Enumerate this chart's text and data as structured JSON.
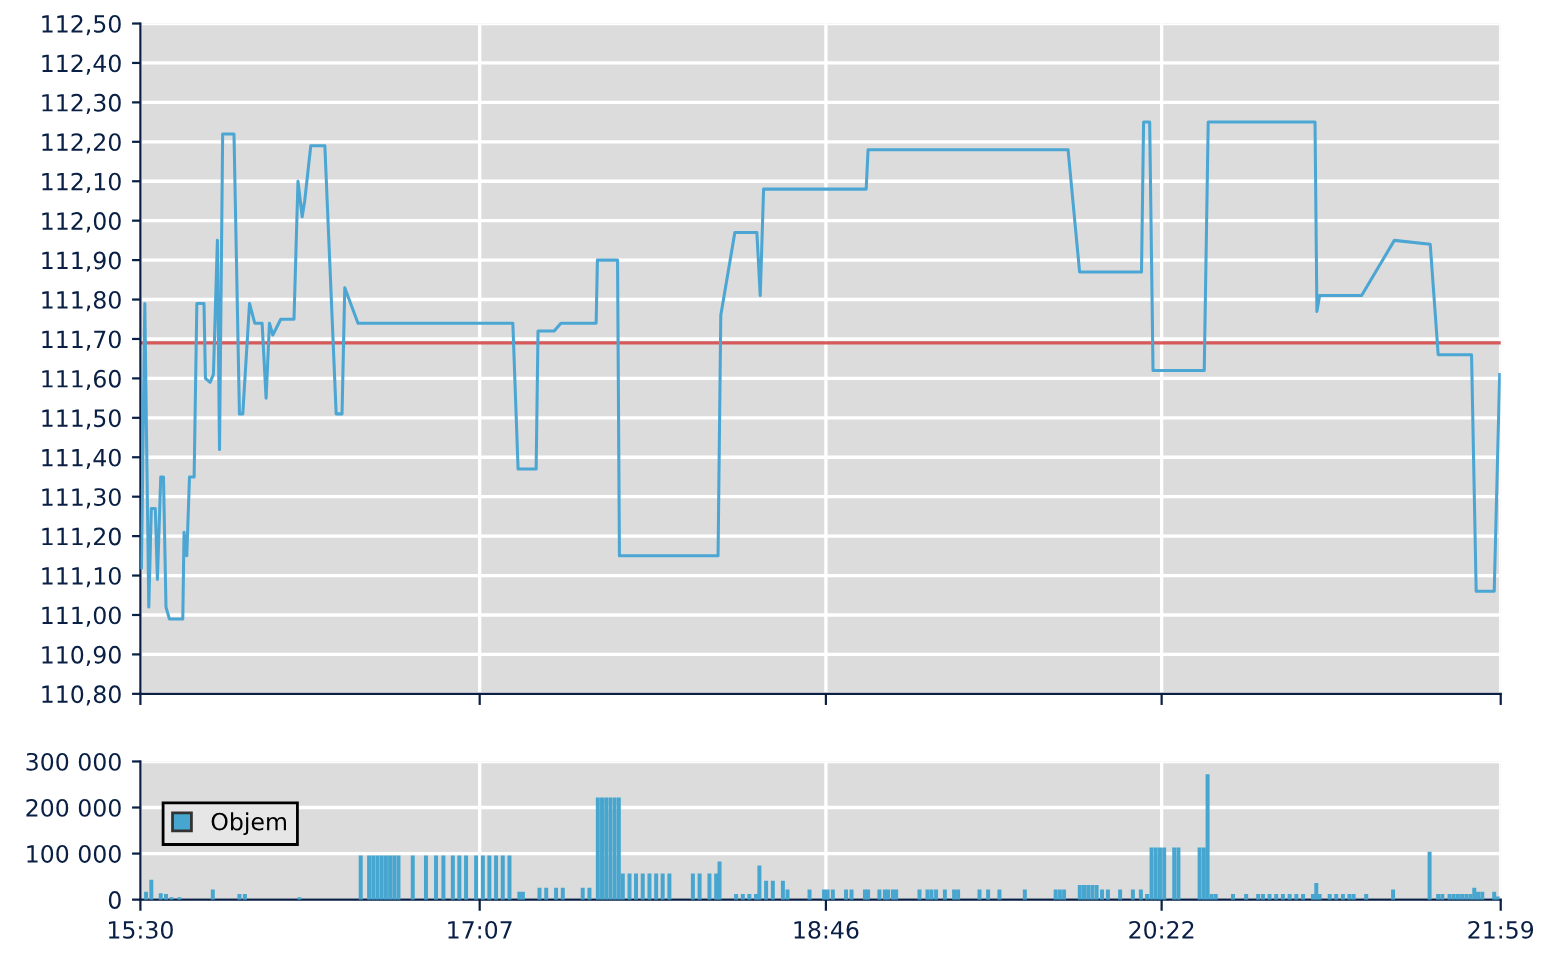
{
  "chart_data": [
    {
      "type": "line",
      "xlim": [
        15.5,
        21.983
      ],
      "xticks": [
        {
          "value": 15.5,
          "label": null
        },
        {
          "value": 17.117,
          "label": null
        },
        {
          "value": 18.767,
          "label": null
        },
        {
          "value": 20.367,
          "label": null
        },
        {
          "value": 21.983,
          "label": null
        }
      ],
      "tick_labels": "y",
      "ylim": [
        110.8,
        112.5
      ],
      "yticks": [
        {
          "value": 110.8,
          "label": "110,80"
        },
        {
          "value": 110.9,
          "label": "110,90"
        },
        {
          "value": 111.0,
          "label": "111,00"
        },
        {
          "value": 111.1,
          "label": "111,10"
        },
        {
          "value": 111.2,
          "label": "111,20"
        },
        {
          "value": 111.3,
          "label": "111,30"
        },
        {
          "value": 111.4,
          "label": "111,40"
        },
        {
          "value": 111.5,
          "label": "111,50"
        },
        {
          "value": 111.6,
          "label": "111,60"
        },
        {
          "value": 111.7,
          "label": "111,70"
        },
        {
          "value": 111.8,
          "label": "111,80"
        },
        {
          "value": 111.9,
          "label": "111,90"
        },
        {
          "value": 112.0,
          "label": "112,00"
        },
        {
          "value": 112.1,
          "label": "112,10"
        },
        {
          "value": 112.2,
          "label": "112,20"
        },
        {
          "value": 112.3,
          "label": "112,30"
        },
        {
          "value": 112.4,
          "label": "112,40"
        },
        {
          "value": 112.5,
          "label": "112,50"
        }
      ],
      "grid": true,
      "marker": "none",
      "line_style": "solid",
      "ref_lines": [
        {
          "axis": "y",
          "value": 111.69,
          "color": "#d65a5a"
        }
      ],
      "series": [
        {
          "color": "#4ba6d3",
          "x": [
            15.505,
            15.521,
            15.54,
            15.552,
            15.571,
            15.581,
            15.597,
            15.61,
            15.622,
            15.638,
            15.702,
            15.708,
            15.721,
            15.734,
            15.756,
            15.769,
            15.803,
            15.81,
            15.832,
            15.848,
            15.867,
            15.877,
            15.892,
            15.946,
            15.972,
            15.988,
            16.02,
            16.045,
            16.08,
            16.099,
            16.115,
            16.131,
            16.169,
            16.232,
            16.251,
            16.271,
            16.283,
            16.312,
            16.379,
            16.433,
            16.461,
            16.474,
            16.537,
            17.275,
            17.3,
            17.386,
            17.395,
            17.472,
            17.504,
            17.672,
            17.678,
            17.774,
            17.783,
            18.253,
            18.266,
            18.333,
            18.438,
            18.454,
            18.47,
            18.959,
            18.968,
            19.921,
            19.976,
            20.271,
            20.281,
            20.31,
            20.326,
            20.57,
            20.589,
            21.098,
            21.107,
            21.12,
            21.32,
            21.476,
            21.647,
            21.685,
            21.844,
            21.866,
            21.952,
            21.978
          ],
          "values": [
            111.12,
            111.79,
            111.02,
            111.27,
            111.27,
            111.09,
            111.35,
            111.35,
            111.02,
            110.99,
            110.99,
            111.21,
            111.15,
            111.35,
            111.35,
            111.79,
            111.79,
            111.6,
            111.59,
            111.61,
            111.95,
            111.42,
            112.22,
            112.22,
            111.51,
            111.51,
            111.79,
            111.74,
            111.74,
            111.55,
            111.74,
            111.71,
            111.75,
            111.75,
            112.1,
            112.01,
            112.05,
            112.19,
            112.19,
            111.51,
            111.51,
            111.83,
            111.74,
            111.74,
            111.37,
            111.37,
            111.72,
            111.72,
            111.74,
            111.74,
            111.9,
            111.9,
            111.15,
            111.15,
            111.76,
            111.97,
            111.97,
            111.81,
            112.08,
            112.08,
            112.18,
            112.18,
            111.87,
            111.87,
            112.25,
            112.25,
            111.62,
            111.62,
            112.25,
            112.25,
            111.77,
            111.81,
            111.81,
            111.95,
            111.94,
            111.66,
            111.66,
            111.06,
            111.06,
            111.61
          ]
        }
      ]
    },
    {
      "type": "bar",
      "xlim": [
        15.5,
        21.983
      ],
      "xticks": [
        {
          "value": 15.5,
          "label": "15:30"
        },
        {
          "value": 17.117,
          "label": "17:07"
        },
        {
          "value": 18.767,
          "label": "18:46"
        },
        {
          "value": 20.367,
          "label": "20:22"
        },
        {
          "value": 21.983,
          "label": "21:59"
        }
      ],
      "ylim": [
        0,
        300000
      ],
      "yticks": [
        0,
        {
          "value": 100000,
          "label": "100 000"
        },
        {
          "value": 200000,
          "label": "200 000"
        },
        {
          "value": 300000,
          "label": "300 000"
        }
      ],
      "grid": true,
      "legend": "left",
      "series": [
        {
          "name": "Objem",
          "color": "#47a6cf",
          "x": [
            15.527,
            15.552,
            15.597,
            15.622,
            15.648,
            15.686,
            15.845,
            15.972,
            15.998,
            16.258,
            16.55,
            16.59,
            16.61,
            16.63,
            16.65,
            16.67,
            16.69,
            16.71,
            16.73,
            16.798,
            16.861,
            16.909,
            16.944,
            16.989,
            17.02,
            17.052,
            17.1,
            17.132,
            17.163,
            17.195,
            17.227,
            17.259,
            17.306,
            17.323,
            17.402,
            17.434,
            17.481,
            17.513,
            17.608,
            17.64,
            17.68,
            17.7,
            17.72,
            17.74,
            17.76,
            17.78,
            17.799,
            17.831,
            17.862,
            17.894,
            17.926,
            17.958,
            17.989,
            18.021,
            18.133,
            18.165,
            18.212,
            18.244,
            18.26,
            18.339,
            18.371,
            18.402,
            18.434,
            18.45,
            18.482,
            18.514,
            18.562,
            18.584,
            18.689,
            18.758,
            18.775,
            18.8,
            18.863,
            18.889,
            18.953,
            18.968,
            19.022,
            19.048,
            19.063,
            19.086,
            19.102,
            19.213,
            19.251,
            19.27,
            19.292,
            19.334,
            19.378,
            19.397,
            19.499,
            19.54,
            19.594,
            19.715,
            19.862,
            19.882,
            19.902,
            19.977,
            19.997,
            20.017,
            20.037,
            20.057,
            20.083,
            20.111,
            20.169,
            20.23,
            20.268,
            20.298,
            20.319,
            20.339,
            20.359,
            20.379,
            20.427,
            20.447,
            20.548,
            20.568,
            20.586,
            20.605,
            20.625,
            20.707,
            20.77,
            20.827,
            20.85,
            20.881,
            20.913,
            20.945,
            20.977,
            21.009,
            21.041,
            21.088,
            21.104,
            21.12,
            21.168,
            21.199,
            21.231,
            21.262,
            21.282,
            21.342,
            21.47,
            21.644,
            21.685,
            21.705,
            21.739,
            21.759,
            21.779,
            21.799,
            21.819,
            21.839,
            21.857,
            21.875,
            21.895,
            21.952,
            21.968
          ],
          "values": [
            17000,
            43000,
            14000,
            12000,
            5000,
            5000,
            22000,
            12000,
            12000,
            5000,
            96000,
            96000,
            96000,
            96000,
            96000,
            96000,
            96000,
            96000,
            96000,
            96000,
            96000,
            96000,
            96000,
            96000,
            96000,
            96000,
            96000,
            96000,
            96000,
            96000,
            96000,
            96000,
            17000,
            17000,
            26000,
            26000,
            26000,
            26000,
            26000,
            26000,
            222000,
            222000,
            222000,
            222000,
            222000,
            222000,
            57000,
            57000,
            57000,
            57000,
            57000,
            57000,
            57000,
            57000,
            57000,
            57000,
            57000,
            57000,
            83000,
            12000,
            12000,
            12000,
            12000,
            74000,
            41000,
            41000,
            41000,
            22000,
            22000,
            22000,
            22000,
            22000,
            22000,
            22000,
            22000,
            22000,
            22000,
            22000,
            22000,
            22000,
            22000,
            22000,
            22000,
            22000,
            22000,
            22000,
            22000,
            22000,
            22000,
            22000,
            22000,
            22000,
            22000,
            22000,
            22000,
            32000,
            32000,
            32000,
            32000,
            32000,
            22000,
            22000,
            22000,
            22000,
            22000,
            12000,
            113000,
            113000,
            113000,
            113000,
            113000,
            113000,
            113000,
            113000,
            272000,
            12000,
            12000,
            12000,
            12000,
            12000,
            12000,
            12000,
            12000,
            12000,
            12000,
            12000,
            12000,
            12000,
            36000,
            12000,
            12000,
            12000,
            12000,
            12000,
            12000,
            12000,
            22000,
            104000,
            12000,
            12000,
            12000,
            12000,
            12000,
            12000,
            12000,
            12000,
            26000,
            17000,
            17000,
            17000,
            7000
          ]
        }
      ]
    }
  ]
}
